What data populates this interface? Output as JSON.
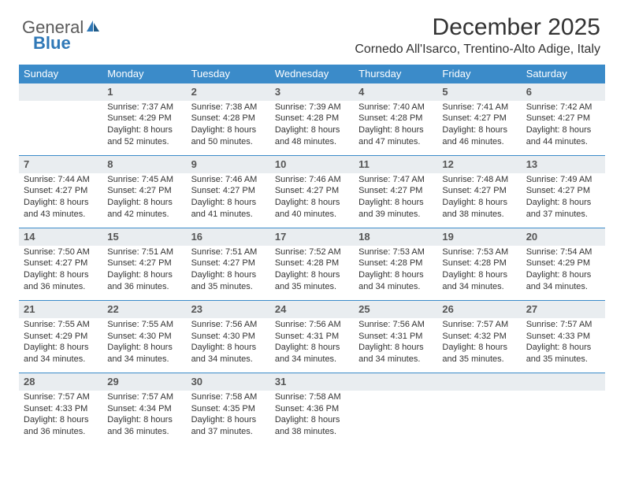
{
  "logo": {
    "text1": "General",
    "text2": "Blue",
    "accent": "#2f78b7"
  },
  "title": "December 2025",
  "location": "Cornedo All'Isarco, Trentino-Alto Adige, Italy",
  "header_bg": "#3b8bc9",
  "row_head_bg": "#e9edf0",
  "weekdays": [
    "Sunday",
    "Monday",
    "Tuesday",
    "Wednesday",
    "Thursday",
    "Friday",
    "Saturday"
  ],
  "weeks": [
    [
      null,
      {
        "n": "1",
        "sr": "7:37 AM",
        "ss": "4:29 PM",
        "dl": "8 hours and 52 minutes."
      },
      {
        "n": "2",
        "sr": "7:38 AM",
        "ss": "4:28 PM",
        "dl": "8 hours and 50 minutes."
      },
      {
        "n": "3",
        "sr": "7:39 AM",
        "ss": "4:28 PM",
        "dl": "8 hours and 48 minutes."
      },
      {
        "n": "4",
        "sr": "7:40 AM",
        "ss": "4:28 PM",
        "dl": "8 hours and 47 minutes."
      },
      {
        "n": "5",
        "sr": "7:41 AM",
        "ss": "4:27 PM",
        "dl": "8 hours and 46 minutes."
      },
      {
        "n": "6",
        "sr": "7:42 AM",
        "ss": "4:27 PM",
        "dl": "8 hours and 44 minutes."
      }
    ],
    [
      {
        "n": "7",
        "sr": "7:44 AM",
        "ss": "4:27 PM",
        "dl": "8 hours and 43 minutes."
      },
      {
        "n": "8",
        "sr": "7:45 AM",
        "ss": "4:27 PM",
        "dl": "8 hours and 42 minutes."
      },
      {
        "n": "9",
        "sr": "7:46 AM",
        "ss": "4:27 PM",
        "dl": "8 hours and 41 minutes."
      },
      {
        "n": "10",
        "sr": "7:46 AM",
        "ss": "4:27 PM",
        "dl": "8 hours and 40 minutes."
      },
      {
        "n": "11",
        "sr": "7:47 AM",
        "ss": "4:27 PM",
        "dl": "8 hours and 39 minutes."
      },
      {
        "n": "12",
        "sr": "7:48 AM",
        "ss": "4:27 PM",
        "dl": "8 hours and 38 minutes."
      },
      {
        "n": "13",
        "sr": "7:49 AM",
        "ss": "4:27 PM",
        "dl": "8 hours and 37 minutes."
      }
    ],
    [
      {
        "n": "14",
        "sr": "7:50 AM",
        "ss": "4:27 PM",
        "dl": "8 hours and 36 minutes."
      },
      {
        "n": "15",
        "sr": "7:51 AM",
        "ss": "4:27 PM",
        "dl": "8 hours and 36 minutes."
      },
      {
        "n": "16",
        "sr": "7:51 AM",
        "ss": "4:27 PM",
        "dl": "8 hours and 35 minutes."
      },
      {
        "n": "17",
        "sr": "7:52 AM",
        "ss": "4:28 PM",
        "dl": "8 hours and 35 minutes."
      },
      {
        "n": "18",
        "sr": "7:53 AM",
        "ss": "4:28 PM",
        "dl": "8 hours and 34 minutes."
      },
      {
        "n": "19",
        "sr": "7:53 AM",
        "ss": "4:28 PM",
        "dl": "8 hours and 34 minutes."
      },
      {
        "n": "20",
        "sr": "7:54 AM",
        "ss": "4:29 PM",
        "dl": "8 hours and 34 minutes."
      }
    ],
    [
      {
        "n": "21",
        "sr": "7:55 AM",
        "ss": "4:29 PM",
        "dl": "8 hours and 34 minutes."
      },
      {
        "n": "22",
        "sr": "7:55 AM",
        "ss": "4:30 PM",
        "dl": "8 hours and 34 minutes."
      },
      {
        "n": "23",
        "sr": "7:56 AM",
        "ss": "4:30 PM",
        "dl": "8 hours and 34 minutes."
      },
      {
        "n": "24",
        "sr": "7:56 AM",
        "ss": "4:31 PM",
        "dl": "8 hours and 34 minutes."
      },
      {
        "n": "25",
        "sr": "7:56 AM",
        "ss": "4:31 PM",
        "dl": "8 hours and 34 minutes."
      },
      {
        "n": "26",
        "sr": "7:57 AM",
        "ss": "4:32 PM",
        "dl": "8 hours and 35 minutes."
      },
      {
        "n": "27",
        "sr": "7:57 AM",
        "ss": "4:33 PM",
        "dl": "8 hours and 35 minutes."
      }
    ],
    [
      {
        "n": "28",
        "sr": "7:57 AM",
        "ss": "4:33 PM",
        "dl": "8 hours and 36 minutes."
      },
      {
        "n": "29",
        "sr": "7:57 AM",
        "ss": "4:34 PM",
        "dl": "8 hours and 36 minutes."
      },
      {
        "n": "30",
        "sr": "7:58 AM",
        "ss": "4:35 PM",
        "dl": "8 hours and 37 minutes."
      },
      {
        "n": "31",
        "sr": "7:58 AM",
        "ss": "4:36 PM",
        "dl": "8 hours and 38 minutes."
      },
      null,
      null,
      null
    ]
  ],
  "labels": {
    "sunrise": "Sunrise:",
    "sunset": "Sunset:",
    "daylight": "Daylight:"
  }
}
